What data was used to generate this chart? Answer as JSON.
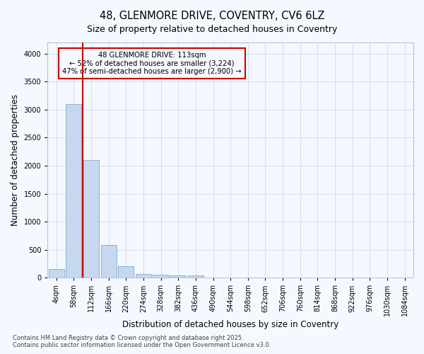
{
  "title1": "48, GLENMORE DRIVE, COVENTRY, CV6 6LZ",
  "title2": "Size of property relative to detached houses in Coventry",
  "xlabel": "Distribution of detached houses by size in Coventry",
  "ylabel": "Number of detached properties",
  "bar_labels": [
    "4sqm",
    "58sqm",
    "112sqm",
    "166sqm",
    "220sqm",
    "274sqm",
    "328sqm",
    "382sqm",
    "436sqm",
    "490sqm",
    "544sqm",
    "598sqm",
    "652sqm",
    "706sqm",
    "760sqm",
    "814sqm",
    "868sqm",
    "922sqm",
    "976sqm",
    "1030sqm",
    "1084sqm"
  ],
  "bar_values": [
    150,
    3100,
    2100,
    580,
    200,
    70,
    50,
    40,
    40,
    0,
    0,
    0,
    0,
    0,
    0,
    0,
    0,
    0,
    0,
    0,
    0
  ],
  "bar_color": "#c5d8ef",
  "bar_edge_color": "#8ab4d9",
  "grid_color": "#d0dff0",
  "background_color": "#f5f8ff",
  "vline_color": "#cc0000",
  "vline_x": 1.5,
  "annotation_line1": "48 GLENMORE DRIVE: 113sqm",
  "annotation_line2": "← 52% of detached houses are smaller (3,224)",
  "annotation_line3": "47% of semi-detached houses are larger (2,900) →",
  "annotation_box_color": "#cc0000",
  "ylim": [
    0,
    4200
  ],
  "yticks": [
    0,
    500,
    1000,
    1500,
    2000,
    2500,
    3000,
    3500,
    4000
  ],
  "footer1": "Contains HM Land Registry data © Crown copyright and database right 2025.",
  "footer2": "Contains public sector information licensed under the Open Government Licence v3.0.",
  "title_fontsize": 10.5,
  "subtitle_fontsize": 9,
  "tick_fontsize": 7,
  "ylabel_fontsize": 8.5,
  "xlabel_fontsize": 8.5,
  "footer_fontsize": 6
}
